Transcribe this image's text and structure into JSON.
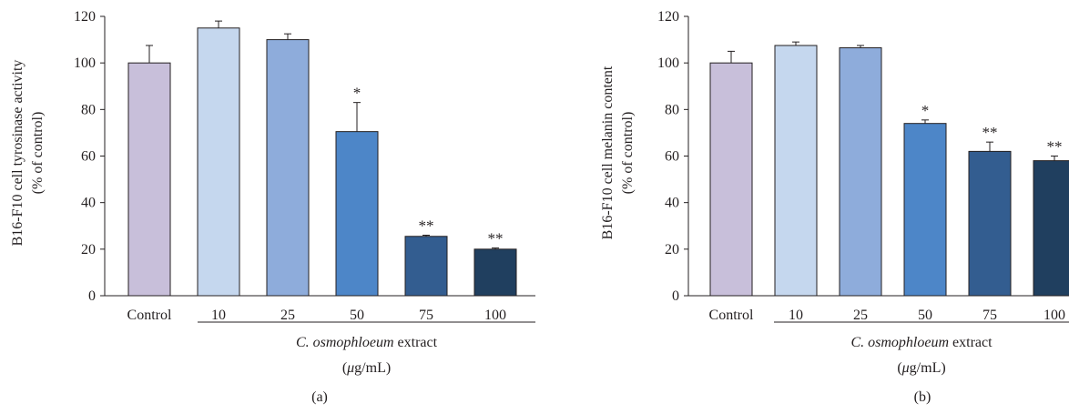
{
  "chart_data": [
    {
      "type": "bar",
      "panel_label": "(a)",
      "categories": [
        "Control",
        "10",
        "25",
        "50",
        "75",
        "100"
      ],
      "values": [
        100,
        115,
        110,
        70.5,
        25.5,
        20
      ],
      "error": [
        7.5,
        3,
        2.5,
        12.5,
        0.5,
        0.5
      ],
      "significance": [
        "",
        "",
        "",
        "*",
        "**",
        "**"
      ],
      "colors": [
        "#c8bfda",
        "#c5d7ee",
        "#8eacdb",
        "#4d86c8",
        "#335d90",
        "#203f5f"
      ],
      "ylabel_line1": "B16-F10 cell tyrosinase activity",
      "ylabel_line2": "(% of control)",
      "group_label_italic": "C. osmophloeum",
      "group_label_rest": " extract",
      "group_unit_mu": "μ",
      "group_unit_rest": "g/mL",
      "ylim": [
        0,
        120
      ],
      "yticks": [
        "0",
        "20",
        "40",
        "60",
        "80",
        "100",
        "120"
      ],
      "grid": false,
      "legend": "none"
    },
    {
      "type": "bar",
      "panel_label": "(b)",
      "categories": [
        "Control",
        "10",
        "25",
        "50",
        "75",
        "100"
      ],
      "values": [
        100,
        107.5,
        106.5,
        74,
        62,
        58
      ],
      "error": [
        5,
        1.5,
        1,
        1.5,
        4,
        2
      ],
      "significance": [
        "",
        "",
        "",
        "*",
        "**",
        "**"
      ],
      "colors": [
        "#c8bfda",
        "#c5d7ee",
        "#8eacdb",
        "#4d86c8",
        "#335d90",
        "#203f5f"
      ],
      "ylabel_line1": "B16-F10 cell melanin content",
      "ylabel_line2": "(% of control)",
      "group_label_italic": "C. osmophloeum",
      "group_label_rest": " extract",
      "group_unit_mu": "μ",
      "group_unit_rest": "g/mL",
      "ylim": [
        0,
        120
      ],
      "yticks": [
        "0",
        "20",
        "40",
        "60",
        "80",
        "100",
        "120"
      ],
      "grid": false,
      "legend": "none"
    }
  ]
}
